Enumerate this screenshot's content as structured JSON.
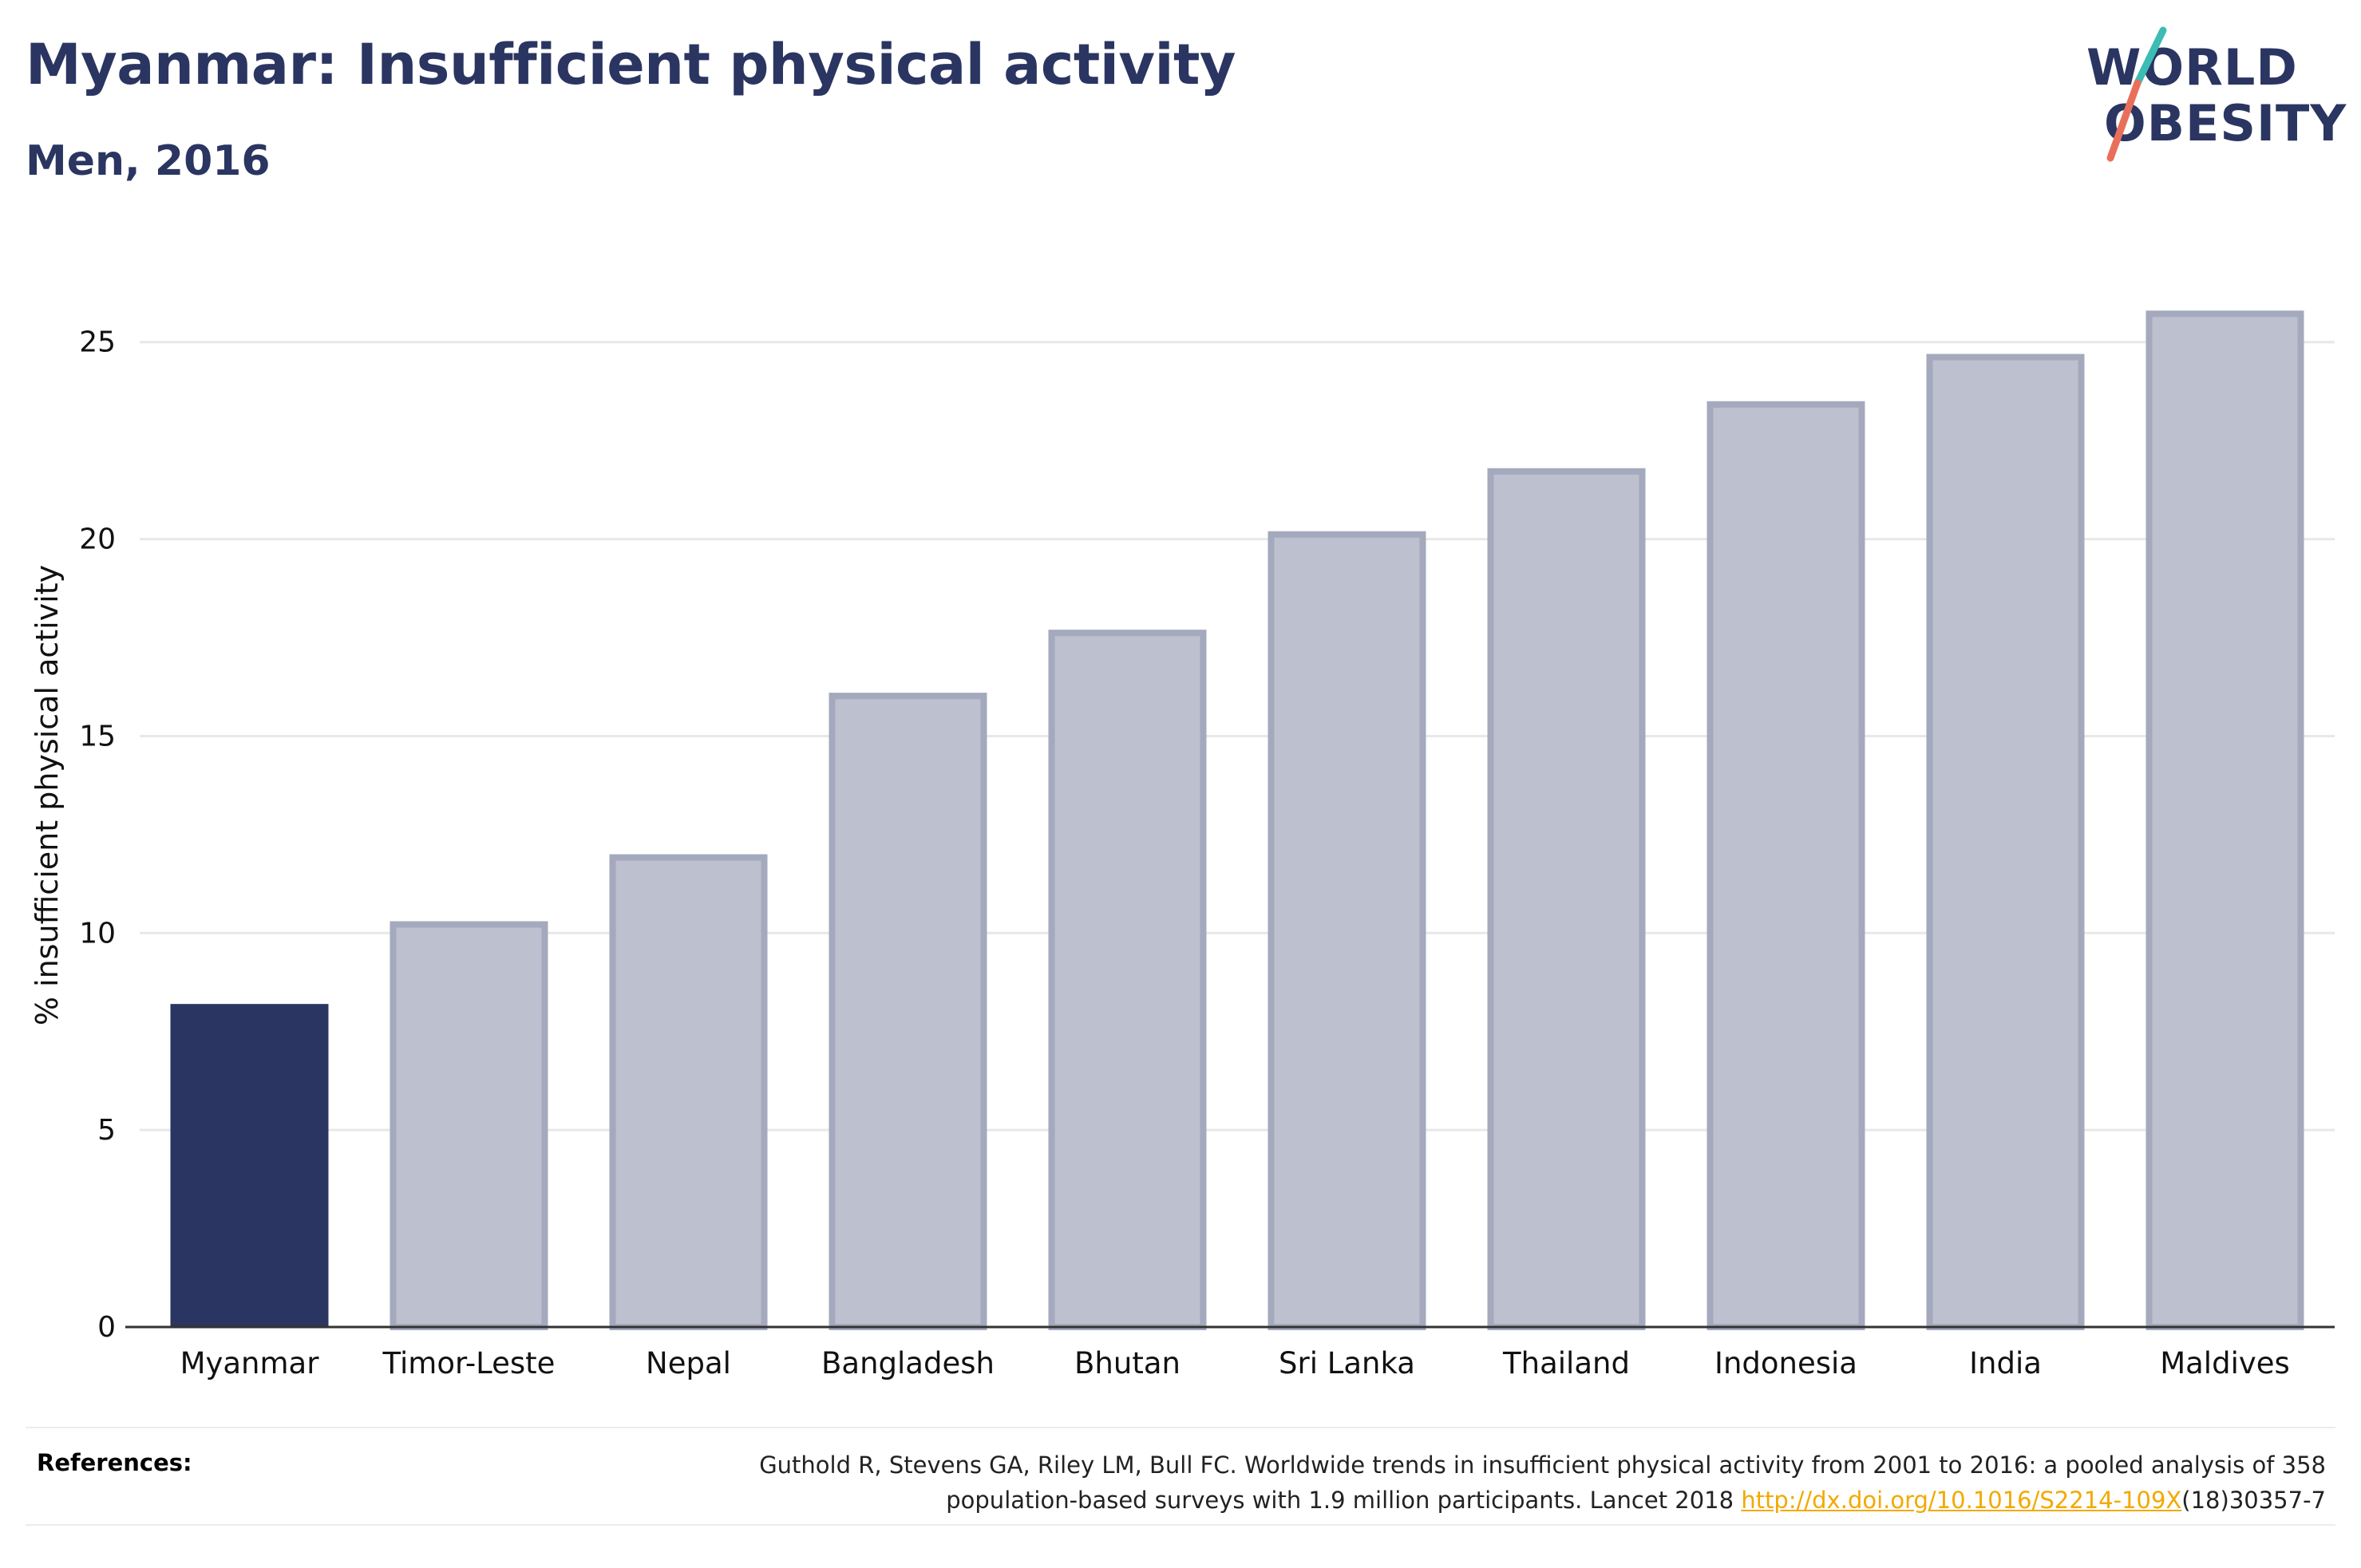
{
  "header": {
    "title": "Myanmar: Insufficient physical activity",
    "subtitle": "Men, 2016"
  },
  "logo": {
    "line1": "WORLD",
    "line2": "OBESITY"
  },
  "chart_data": {
    "type": "bar",
    "categories": [
      "Myanmar",
      "Timor-Leste",
      "Nepal",
      "Bangladesh",
      "Bhutan",
      "Sri Lanka",
      "Thailand",
      "Indonesia",
      "India",
      "Maldives"
    ],
    "values": [
      8.2,
      10.3,
      12.0,
      16.1,
      17.7,
      20.2,
      21.8,
      23.5,
      24.7,
      25.8
    ],
    "highlight": "Myanmar",
    "ylabel": "% insufficient physical activity",
    "ylim": [
      0,
      27
    ],
    "yticks": [
      0,
      5,
      10,
      15,
      20,
      25
    ],
    "grid": true,
    "colors": {
      "highlight": "#2b3561",
      "other_fill": "#bdc0ce",
      "other_stroke": "#a4a9bd",
      "grid": "#e8e8e8",
      "axis": "#333333"
    }
  },
  "references": {
    "label": "References:",
    "line1": "Guthold R, Stevens GA, Riley LM, Bull FC. Worldwide trends in insufficient physical activity from 2001 to 2016: a pooled analysis of 358",
    "line2_prefix": "population-based surveys with 1.9 million participants. Lancet 2018 ",
    "link": "http://dx.doi.org/10.1016/S2214-109X",
    "line2_suffix": "(18)30357-7"
  }
}
